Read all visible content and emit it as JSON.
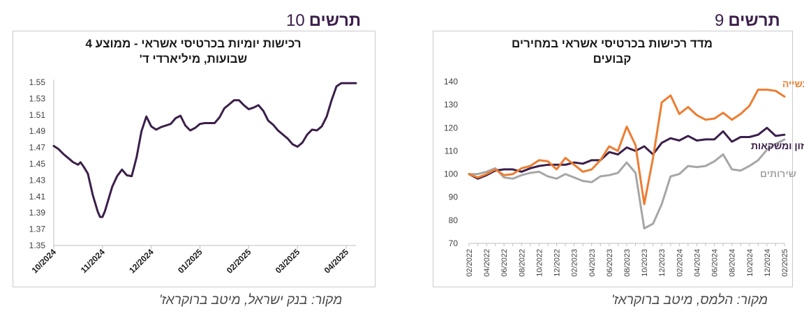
{
  "left_figure": {
    "label_word": "תרשים",
    "label_number": "10",
    "title_line1": "רכישות יומיות בכרטיסי אשראי - ממוצע 4",
    "title_line2": "שבועות, מיליארדי ד'",
    "source": "מקור: בנק ישראל, מיטב ברוקראז'"
  },
  "right_figure": {
    "label_word": "תרשים",
    "label_number": "9",
    "title_line1": "מדד רכישות בכרטיסי אשראי במחירים",
    "title_line2": "קבועים",
    "source": "מקור: הלמס, מיטב ברוקראז'"
  },
  "colors": {
    "purple": "#3b1f4a",
    "orange": "#ed7d31",
    "gray": "#a6a6a6",
    "axis": "#bfbfbf",
    "tick_text": "#404040"
  },
  "chart_data": [
    {
      "type": "line",
      "ylim": [
        1.35,
        1.55
      ],
      "y_ticks": [
        "1.35",
        "1.37",
        "1.39",
        "1.41",
        "1.43",
        "1.45",
        "1.47",
        "1.49",
        "1.51",
        "1.53",
        "1.55"
      ],
      "x_ticks": [
        "10/2024",
        "11/2024",
        "12/2024",
        "01/2025",
        "02/2025",
        "03/2025",
        "04/2025"
      ],
      "xlim": [
        0,
        6.2
      ],
      "series": [
        {
          "x": [
            0.0,
            0.1,
            0.2,
            0.3,
            0.4,
            0.5,
            0.55,
            0.62,
            0.7,
            0.8,
            0.9,
            0.95,
            1.0,
            1.05,
            1.1,
            1.2,
            1.3,
            1.4,
            1.5,
            1.6,
            1.7,
            1.8,
            1.9,
            2.0,
            2.1,
            2.2,
            2.3,
            2.4,
            2.5,
            2.6,
            2.7,
            2.8,
            2.9,
            3.0,
            3.1,
            3.2,
            3.3,
            3.4,
            3.5,
            3.6,
            3.7,
            3.8,
            3.9,
            4.0,
            4.1,
            4.2,
            4.3,
            4.4,
            4.5,
            4.6,
            4.7,
            4.8,
            4.9,
            5.0,
            5.1,
            5.2,
            5.3,
            5.4,
            5.5,
            5.6,
            5.7,
            5.8,
            5.9,
            6.0,
            6.1,
            6.2
          ],
          "values": [
            1.472,
            1.468,
            1.462,
            1.457,
            1.452,
            1.449,
            1.452,
            1.446,
            1.438,
            1.412,
            1.392,
            1.385,
            1.385,
            1.392,
            1.402,
            1.422,
            1.435,
            1.443,
            1.436,
            1.435,
            1.458,
            1.49,
            1.508,
            1.496,
            1.492,
            1.495,
            1.497,
            1.499,
            1.506,
            1.509,
            1.497,
            1.491,
            1.494,
            1.499,
            1.5,
            1.5,
            1.5,
            1.507,
            1.518,
            1.523,
            1.528,
            1.528,
            1.522,
            1.517,
            1.519,
            1.522,
            1.515,
            1.503,
            1.498,
            1.491,
            1.486,
            1.481,
            1.474,
            1.471,
            1.476,
            1.486,
            1.492,
            1.491,
            1.496,
            1.508,
            1.528,
            1.545,
            1.549,
            1.549,
            1.549,
            1.549
          ]
        }
      ]
    },
    {
      "type": "line",
      "ylim": [
        70,
        140
      ],
      "y_ticks": [
        "70",
        "80",
        "90",
        "100",
        "110",
        "120",
        "130",
        "140"
      ],
      "x_ticks": [
        "02/2022",
        "04/2022",
        "06/2022",
        "08/2022",
        "10/2022",
        "12/2022",
        "02/2023",
        "04/2023",
        "06/2023",
        "08/2023",
        "10/2023",
        "12/2023",
        "02/2024",
        "04/2024",
        "06/2024",
        "08/2024",
        "10/2024",
        "12/2024",
        "02/2025"
      ],
      "series": [
        {
          "name": "מוצרי תעשייה",
          "color": "orange",
          "values": [
            100,
            98.5,
            100,
            102,
            99.5,
            100,
            102.5,
            103.5,
            106,
            105.5,
            102,
            107,
            104,
            101,
            102,
            106,
            112,
            110,
            120.5,
            112.5,
            87,
            107,
            131,
            134,
            126,
            129,
            125.5,
            123.5,
            124,
            126.5,
            123.5,
            126,
            129.5,
            136.5,
            136.5,
            136,
            133.5
          ]
        },
        {
          "name": "מזון ומשקאות",
          "color": "purple",
          "values": [
            100,
            98,
            99.5,
            101.5,
            102,
            102,
            101,
            102.5,
            103.5,
            104,
            104,
            104,
            105,
            104.5,
            106,
            106,
            109.5,
            108.5,
            111.5,
            110,
            112,
            108.5,
            113.5,
            115.5,
            114.5,
            116.5,
            114.5,
            115,
            115,
            118.5,
            114,
            116,
            116,
            117,
            120,
            116.5,
            117
          ]
        },
        {
          "name": "שירותים",
          "color": "gray",
          "values": [
            100,
            100,
            101,
            102.5,
            98.5,
            98,
            99.5,
            100.5,
            101,
            99,
            98,
            100,
            98.5,
            97,
            96.5,
            99,
            99.5,
            100.5,
            105,
            100.5,
            76.5,
            78.5,
            87,
            99,
            100,
            103.5,
            103,
            103.5,
            105.5,
            108.5,
            102,
            101.5,
            103.5,
            106,
            110.5,
            113,
            115
          ]
        }
      ]
    }
  ]
}
